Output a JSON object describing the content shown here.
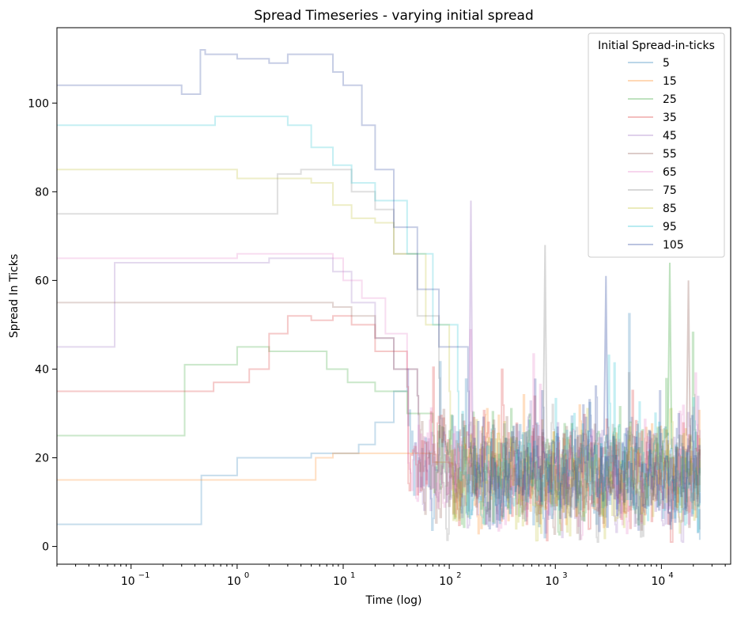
{
  "chart_data": {
    "type": "line",
    "title": "Spread Timeseries - varying initial spread",
    "xlabel": "Time (log)",
    "ylabel": "Spread In Ticks",
    "x_scale": "log",
    "xlim": [
      0.02,
      45000
    ],
    "ylim": [
      -4,
      117
    ],
    "x_ticks": [
      {
        "value": 0.1,
        "base": "10",
        "exp": "−1"
      },
      {
        "value": 1,
        "base": "10",
        "exp": "0"
      },
      {
        "value": 10,
        "base": "10",
        "exp": "1"
      },
      {
        "value": 100,
        "base": "10",
        "exp": "2"
      },
      {
        "value": 1000,
        "base": "10",
        "exp": "3"
      },
      {
        "value": 10000,
        "base": "10",
        "exp": "4"
      }
    ],
    "y_ticks": [
      {
        "value": 0,
        "label": "0"
      },
      {
        "value": 20,
        "label": "20"
      },
      {
        "value": 40,
        "label": "40"
      },
      {
        "value": 60,
        "label": "60"
      },
      {
        "value": 80,
        "label": "80"
      },
      {
        "value": 100,
        "label": "100"
      }
    ],
    "grid": false,
    "legend": {
      "title": "Initial Spread-in-ticks",
      "placement": "top-right"
    },
    "series": [
      {
        "name": "5",
        "color": "#1f77b4",
        "x": [
          0.02,
          0.45,
          0.46,
          1.0,
          2.0,
          5.0,
          9.0,
          14.0,
          20.0,
          30.0,
          40.0
        ],
        "y": [
          5,
          5,
          16,
          20,
          20,
          21,
          21,
          23,
          28,
          35,
          40
        ]
      },
      {
        "name": "15",
        "color": "#ff7f0e",
        "x": [
          0.02,
          5.0,
          5.5,
          8.0,
          12.0,
          20.0,
          40.0,
          70.0,
          100.0
        ],
        "y": [
          15,
          15,
          20,
          21,
          21,
          21,
          21,
          19,
          18
        ]
      },
      {
        "name": "25",
        "color": "#2ca02c",
        "x": [
          0.02,
          0.3,
          0.32,
          0.9,
          1.0,
          2.0,
          3.0,
          7.0,
          11.0,
          20.0,
          40.0,
          70.0
        ],
        "y": [
          25,
          25,
          41,
          41,
          45,
          44,
          44,
          40,
          37,
          35,
          30,
          25
        ]
      },
      {
        "name": "35",
        "color": "#d62728",
        "x": [
          0.02,
          0.4,
          0.6,
          1.0,
          1.3,
          2.0,
          3.0,
          5.0,
          8.0,
          12.0,
          20.0,
          40.0
        ],
        "y": [
          35,
          35,
          37,
          37,
          40,
          48,
          52,
          51,
          52,
          50,
          44,
          36
        ]
      },
      {
        "name": "45",
        "color": "#9467bd",
        "x": [
          0.02,
          0.065,
          0.07,
          0.12,
          1.0,
          2.0,
          5.0,
          8.0,
          12.0,
          20.0,
          30.0,
          50.0
        ],
        "y": [
          45,
          45,
          64,
          64,
          64,
          65,
          65,
          62,
          55,
          47,
          40,
          34
        ]
      },
      {
        "name": "55",
        "color": "#8c564b",
        "x": [
          0.02,
          5.5,
          6.0,
          8.0,
          12.0,
          20.0,
          30.0,
          50.0
        ],
        "y": [
          55,
          55,
          55,
          54,
          52,
          47,
          40,
          34
        ]
      },
      {
        "name": "65",
        "color": "#e377c2",
        "x": [
          0.02,
          0.07,
          0.6,
          1.0,
          2.0,
          5.0,
          8.0,
          10.0,
          15.0,
          25.0,
          40.0
        ],
        "y": [
          65,
          65,
          65,
          66,
          66,
          66,
          65,
          60,
          56,
          48,
          40
        ]
      },
      {
        "name": "75",
        "color": "#7f7f7f",
        "x": [
          0.02,
          2.3,
          2.4,
          4.0,
          8.0,
          12.0,
          20.0,
          30.0,
          50.0,
          80.0
        ],
        "y": [
          75,
          75,
          84,
          85,
          85,
          80,
          76,
          66,
          52,
          38
        ]
      },
      {
        "name": "85",
        "color": "#bcbd22",
        "x": [
          0.02,
          0.5,
          1.0,
          2.0,
          5.0,
          8.0,
          12.0,
          20.0,
          30.0,
          60.0,
          100.0
        ],
        "y": [
          85,
          85,
          83,
          83,
          82,
          77,
          74,
          73,
          66,
          50,
          35
        ]
      },
      {
        "name": "95",
        "color": "#17becf",
        "x": [
          0.02,
          0.6,
          0.62,
          2.0,
          3.0,
          5.0,
          8.0,
          12.0,
          20.0,
          40.0,
          70.0,
          120.0
        ],
        "y": [
          95,
          95,
          97,
          97,
          95,
          90,
          86,
          82,
          78,
          66,
          50,
          35
        ]
      },
      {
        "name": "105",
        "color": "#1f3c99",
        "x": [
          0.02,
          0.15,
          0.3,
          0.45,
          0.5,
          1.0,
          2.0,
          3.0,
          6.0,
          8.0,
          10.0,
          15.0,
          20.0,
          30.0,
          50.0,
          80.0,
          150.0
        ],
        "y": [
          104,
          104,
          102,
          112,
          111,
          110,
          109,
          111,
          111,
          107,
          104,
          95,
          85,
          72,
          58,
          45,
          35
        ]
      }
    ],
    "converged_band": {
      "x_start": 200,
      "x_end": 23000,
      "center": 16,
      "spread": 12,
      "peaks": [
        {
          "x": 160,
          "y": 78
        },
        {
          "x": 800,
          "y": 68
        },
        {
          "x": 3000,
          "y": 61
        },
        {
          "x": 12000,
          "y": 64
        },
        {
          "x": 18000,
          "y": 60
        }
      ]
    }
  }
}
